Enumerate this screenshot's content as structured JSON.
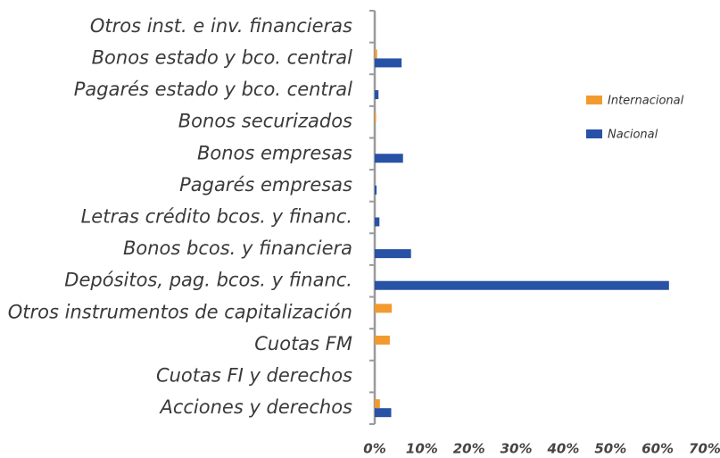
{
  "chart_data": {
    "type": "hbar",
    "categories": [
      "Otros inst. e inv. financieras",
      "Bonos estado y bco. central",
      "Pagarés estado y bco. central",
      "Bonos securizados",
      "Bonos empresas",
      "Pagarés empresas",
      "Letras crédito bcos. y financ.",
      "Bonos bcos. y financiera",
      "Depósitos, pag. bcos. y financ.",
      "Otros instrumentos de capitalización",
      "Cuotas FM",
      "Cuotas FI y derechos",
      "Acciones y derechos"
    ],
    "series": [
      {
        "name": "Internacional",
        "color": "#f39a2e",
        "values": [
          0,
          0.5,
          0,
          0.3,
          0,
          0,
          0,
          0,
          0,
          3.6,
          3.2,
          0,
          1.1
        ]
      },
      {
        "name": "Nacional",
        "color": "#2752a6",
        "values": [
          0,
          5.7,
          0.8,
          0,
          6.0,
          0.4,
          1.0,
          7.7,
          62.4,
          0,
          0,
          0,
          3.5
        ]
      }
    ],
    "xlim": [
      0,
      70
    ],
    "xticks": [
      {
        "value": 0,
        "label": "0%"
      },
      {
        "value": 10,
        "label": "10%"
      },
      {
        "value": 20,
        "label": "20%"
      },
      {
        "value": 30,
        "label": "30%"
      },
      {
        "value": 40,
        "label": "40%"
      },
      {
        "value": 50,
        "label": "50%"
      },
      {
        "value": 60,
        "label": "60%"
      },
      {
        "value": 70,
        "label": "70%"
      }
    ],
    "legend": "right"
  }
}
